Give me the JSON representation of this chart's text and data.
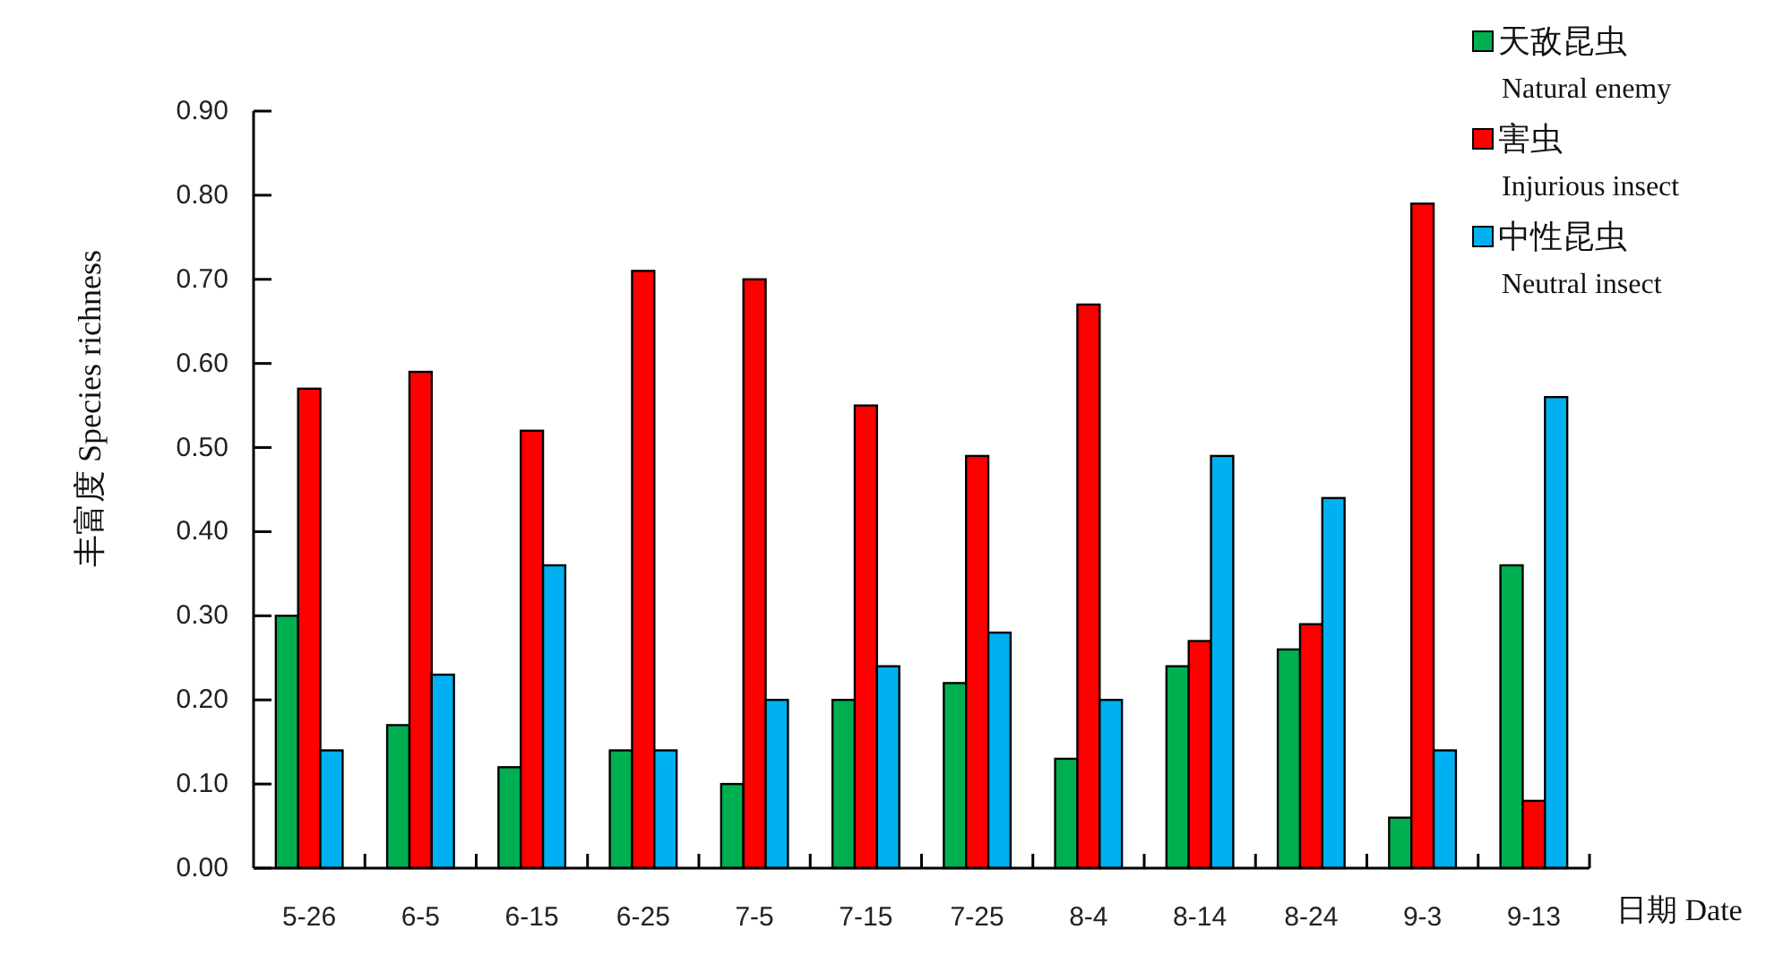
{
  "chart_data": {
    "type": "bar",
    "categories": [
      "5-26",
      "6-5",
      "6-15",
      "6-25",
      "7-5",
      "7-15",
      "7-25",
      "8-4",
      "8-14",
      "8-24",
      "9-3",
      "9-13"
    ],
    "series": [
      {
        "name": "天敌昆虫\nNatural enemy",
        "color": "#00b050",
        "values": [
          0.3,
          0.17,
          0.12,
          0.14,
          0.1,
          0.2,
          0.22,
          0.13,
          0.24,
          0.26,
          0.06,
          0.36
        ]
      },
      {
        "name": "害虫\nInjurious insect",
        "color": "#ff0000",
        "values": [
          0.57,
          0.59,
          0.52,
          0.71,
          0.7,
          0.55,
          0.49,
          0.67,
          0.27,
          0.29,
          0.79,
          0.08
        ]
      },
      {
        "name": "中性昆虫\nNeutral insect",
        "color": "#00b0f0",
        "values": [
          0.14,
          0.23,
          0.36,
          0.14,
          0.2,
          0.24,
          0.28,
          0.2,
          0.49,
          0.44,
          0.14,
          0.56
        ]
      }
    ],
    "xlabel": "日期 Date",
    "ylabel": "丰富度 Species richness",
    "ylim": [
      0,
      0.9
    ],
    "yticks": [
      {
        "value": 0,
        "label": "0.00"
      },
      {
        "value": 0.1,
        "label": "0.10"
      },
      {
        "value": 0.2,
        "label": "0.20"
      },
      {
        "value": 0.3,
        "label": "0.30"
      },
      {
        "value": 0.4,
        "label": "0.40"
      },
      {
        "value": 0.5,
        "label": "0.50"
      },
      {
        "value": 0.6,
        "label": "0.60"
      },
      {
        "value": 0.7,
        "label": "0.70"
      },
      {
        "value": 0.8,
        "label": "0.80"
      },
      {
        "value": 0.9,
        "label": "0.90"
      }
    ],
    "legend": "top right"
  }
}
